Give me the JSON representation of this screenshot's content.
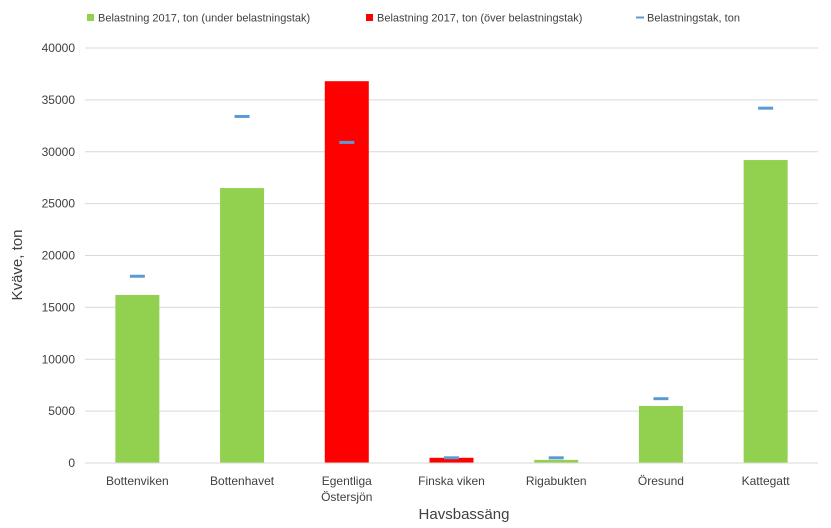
{
  "chart_data": {
    "type": "bar",
    "title": "",
    "xlabel": "Havsbassäng",
    "ylabel": "Kväve, ton",
    "ylim": [
      0,
      40000
    ],
    "yticks": [
      0,
      5000,
      10000,
      15000,
      20000,
      25000,
      30000,
      35000,
      40000
    ],
    "grid": true,
    "legend_position": "top",
    "categories": [
      [
        "Bottenviken"
      ],
      [
        "Bottenhavet"
      ],
      [
        "Egentliga",
        "Östersjön"
      ],
      [
        "Finska viken"
      ],
      [
        "Rigabukten"
      ],
      [
        "Öresund"
      ],
      [
        "Kattegatt"
      ]
    ],
    "series": [
      {
        "name": "Belastning 2017, ton (under belastningstak)",
        "kind": "bar",
        "color": "#92d050",
        "values": [
          16200,
          26500,
          null,
          null,
          300,
          5500,
          29200
        ]
      },
      {
        "name": "Belastning 2017, ton (över belastningstak)",
        "kind": "bar",
        "color": "#ff0000",
        "values": [
          null,
          null,
          36800,
          500,
          null,
          null,
          null
        ]
      },
      {
        "name": "Belastningstak, ton",
        "kind": "marker",
        "color": "#5b9bd5",
        "values": [
          18000,
          33400,
          30900,
          500,
          500,
          6200,
          34200
        ]
      }
    ]
  }
}
